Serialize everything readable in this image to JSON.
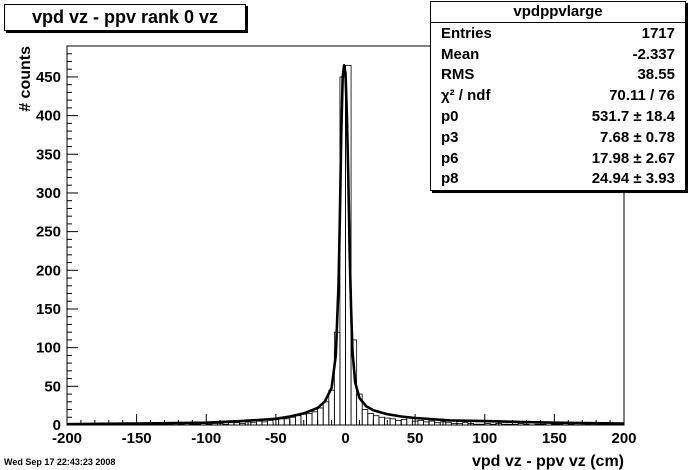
{
  "title": "vpd vz - ppv rank 0 vz",
  "timestamp": "Wed Sep 17 22:43:23 2008",
  "stats": {
    "name": "vpdppvlarge",
    "rows": [
      {
        "label": "Entries",
        "value": "1717"
      },
      {
        "label": "Mean",
        "value": "-2.337"
      },
      {
        "label": "RMS",
        "value": "38.55"
      },
      {
        "label": "χ² / ndf",
        "value": "70.11 / 76"
      },
      {
        "label": "p0",
        "value": "531.7 ± 18.4"
      },
      {
        "label": "p3",
        "value": "7.68 ± 0.78"
      },
      {
        "label": "p6",
        "value": "17.98 ± 2.67"
      },
      {
        "label": "p8",
        "value": "24.94 ± 3.93"
      }
    ]
  },
  "chart_data": {
    "type": "bar",
    "title": "vpd vz - ppv rank 0 vz",
    "xlabel": "vpd vz - ppv vz (cm)",
    "ylabel": "# counts",
    "xlim": [
      -200,
      200
    ],
    "ylim": [
      0,
      490
    ],
    "xticks": [
      -200,
      -150,
      -100,
      -50,
      0,
      50,
      100,
      150,
      200
    ],
    "yticks": [
      0,
      50,
      100,
      150,
      200,
      250,
      300,
      350,
      400,
      450
    ],
    "bin_width": 4,
    "bin_centers": [
      -198,
      -194,
      -190,
      -186,
      -182,
      -178,
      -174,
      -170,
      -166,
      -162,
      -158,
      -154,
      -150,
      -146,
      -142,
      -138,
      -134,
      -130,
      -126,
      -122,
      -118,
      -114,
      -110,
      -106,
      -102,
      -98,
      -94,
      -90,
      -86,
      -82,
      -78,
      -74,
      -70,
      -66,
      -62,
      -58,
      -54,
      -50,
      -46,
      -42,
      -38,
      -34,
      -30,
      -26,
      -22,
      -18,
      -14,
      -10,
      -6,
      -2,
      2,
      6,
      10,
      14,
      18,
      22,
      26,
      30,
      34,
      38,
      42,
      46,
      50,
      54,
      58,
      62,
      66,
      70,
      74,
      78,
      82,
      86,
      90,
      94,
      98,
      102,
      106,
      110,
      114,
      118,
      122,
      126,
      130,
      134,
      138,
      142,
      146,
      150,
      154,
      158,
      162,
      166,
      170,
      174,
      178,
      182,
      186,
      190,
      194,
      198
    ],
    "counts": [
      1,
      0,
      1,
      0,
      1,
      1,
      2,
      0,
      1,
      1,
      0,
      1,
      1,
      1,
      0,
      2,
      1,
      1,
      1,
      3,
      1,
      2,
      1,
      1,
      2,
      1,
      2,
      2,
      1,
      3,
      3,
      2,
      4,
      3,
      5,
      4,
      6,
      7,
      8,
      8,
      10,
      12,
      14,
      15,
      17,
      22,
      30,
      45,
      120,
      450,
      465,
      110,
      40,
      20,
      15,
      12,
      10,
      9,
      8,
      6,
      7,
      9,
      5,
      6,
      4,
      5,
      3,
      4,
      3,
      2,
      2,
      3,
      2,
      1,
      1,
      2,
      1,
      2,
      1,
      1,
      1,
      2,
      1,
      0,
      1,
      1,
      0,
      1,
      1,
      0,
      1,
      0,
      0,
      1,
      0,
      0,
      1,
      0,
      0,
      0
    ],
    "fit": {
      "name": "fit",
      "x": [
        -200,
        -150,
        -100,
        -75,
        -50,
        -40,
        -30,
        -20,
        -15,
        -10,
        -7,
        -5,
        -4,
        -3,
        -2,
        -1,
        0,
        1,
        2,
        3,
        4,
        5,
        7,
        10,
        15,
        20,
        30,
        40,
        50,
        75,
        100,
        150,
        200
      ],
      "y": [
        1,
        2,
        3,
        5,
        8,
        11,
        15,
        22,
        30,
        48,
        90,
        180,
        270,
        380,
        450,
        465,
        455,
        400,
        320,
        220,
        150,
        95,
        55,
        35,
        24,
        19,
        14,
        11,
        9,
        6,
        5,
        3,
        2
      ]
    }
  }
}
